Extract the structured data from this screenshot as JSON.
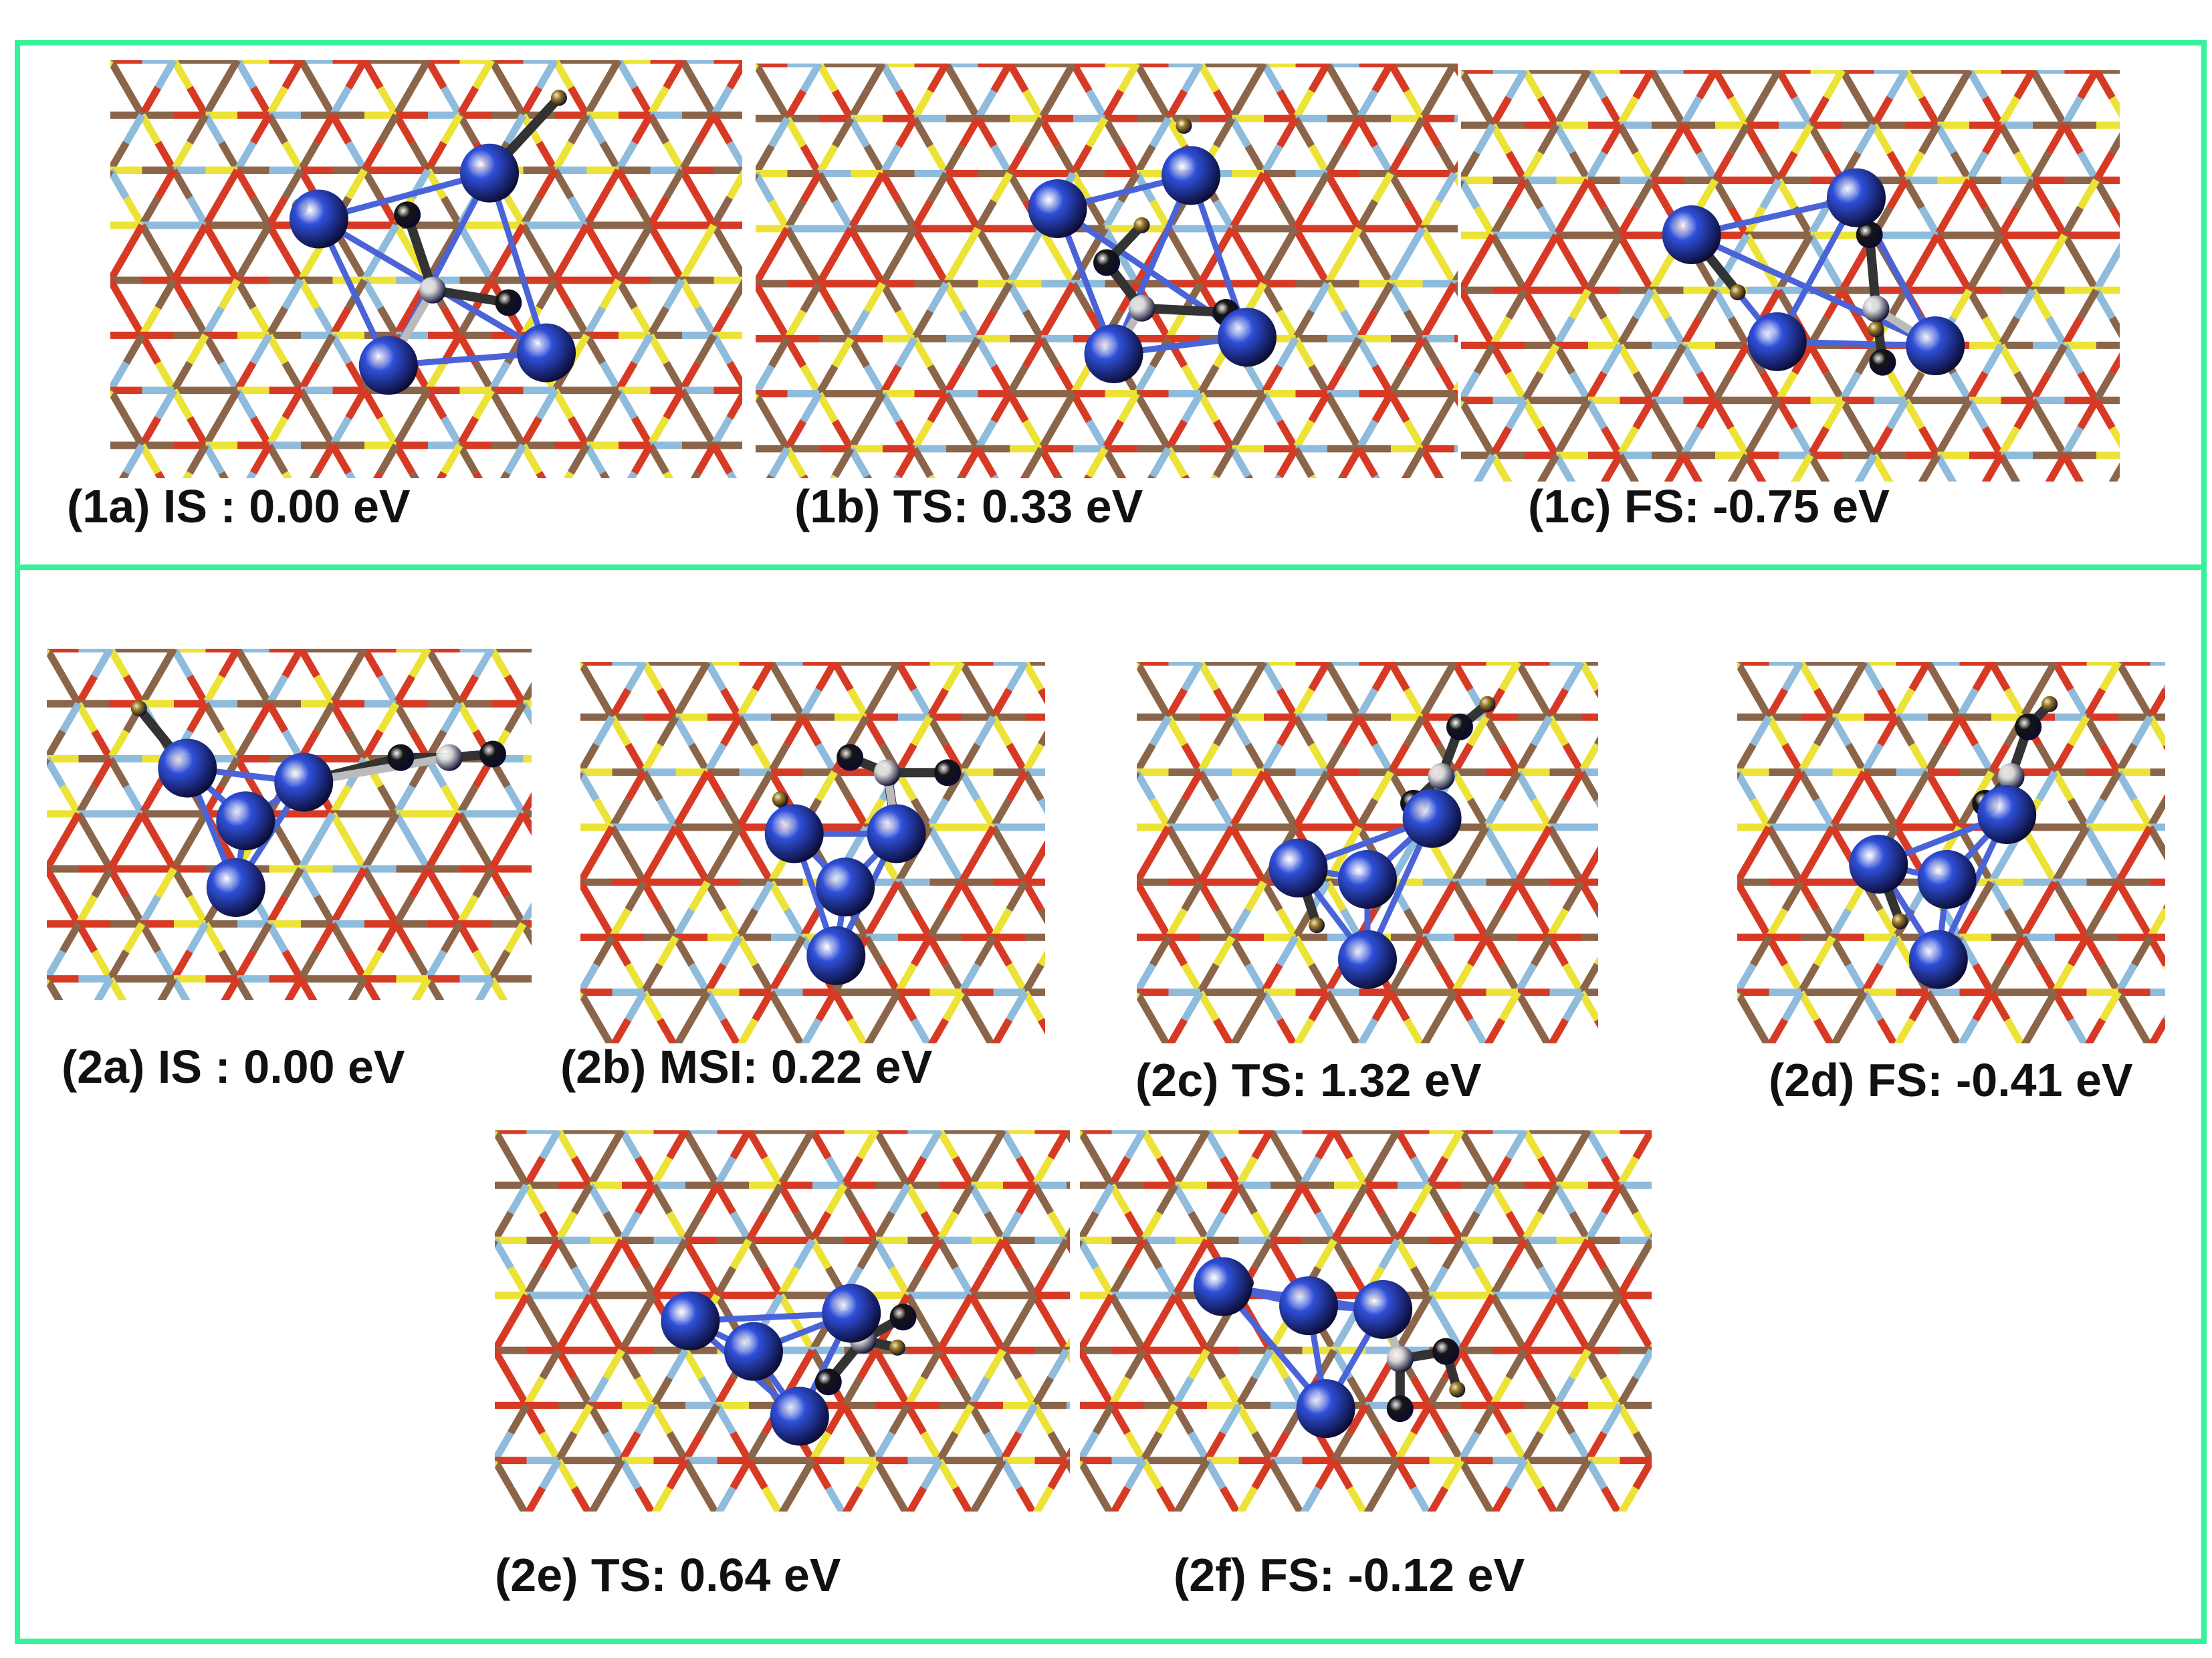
{
  "colors": {
    "frame": "#35f39a",
    "bond_red": "#d63a24",
    "bond_brown": "#8a6549",
    "bond_yellow": "#ece336",
    "bond_blue": "#8fbcdc",
    "cluster_atom": "#2f4fd8",
    "cluster_bond": "#4a64d8",
    "black_atom": "#151515",
    "white_atom": "#d8d8d8",
    "gold_atom": "#a07f1f"
  },
  "top_group": {
    "panels": [
      {
        "id": "1a",
        "label": "(1a) IS : 0.00 eV"
      },
      {
        "id": "1b",
        "label": "(1b) TS: 0.33 eV"
      },
      {
        "id": "1c",
        "label": "(1c) FS: -0.75 eV"
      }
    ]
  },
  "bottom_group": {
    "panels": [
      {
        "id": "2a",
        "label": "(2a) IS : 0.00 eV"
      },
      {
        "id": "2b",
        "label": "(2b) MSI: 0.22 eV"
      },
      {
        "id": "2c",
        "label": "(2c) TS: 1.32 eV"
      },
      {
        "id": "2d",
        "label": "(2d) FS: -0.41 eV"
      },
      {
        "id": "2e",
        "label": "(2e) TS: 0.64 eV"
      },
      {
        "id": "2f",
        "label": "(2f) FS: -0.12 eV"
      }
    ]
  }
}
